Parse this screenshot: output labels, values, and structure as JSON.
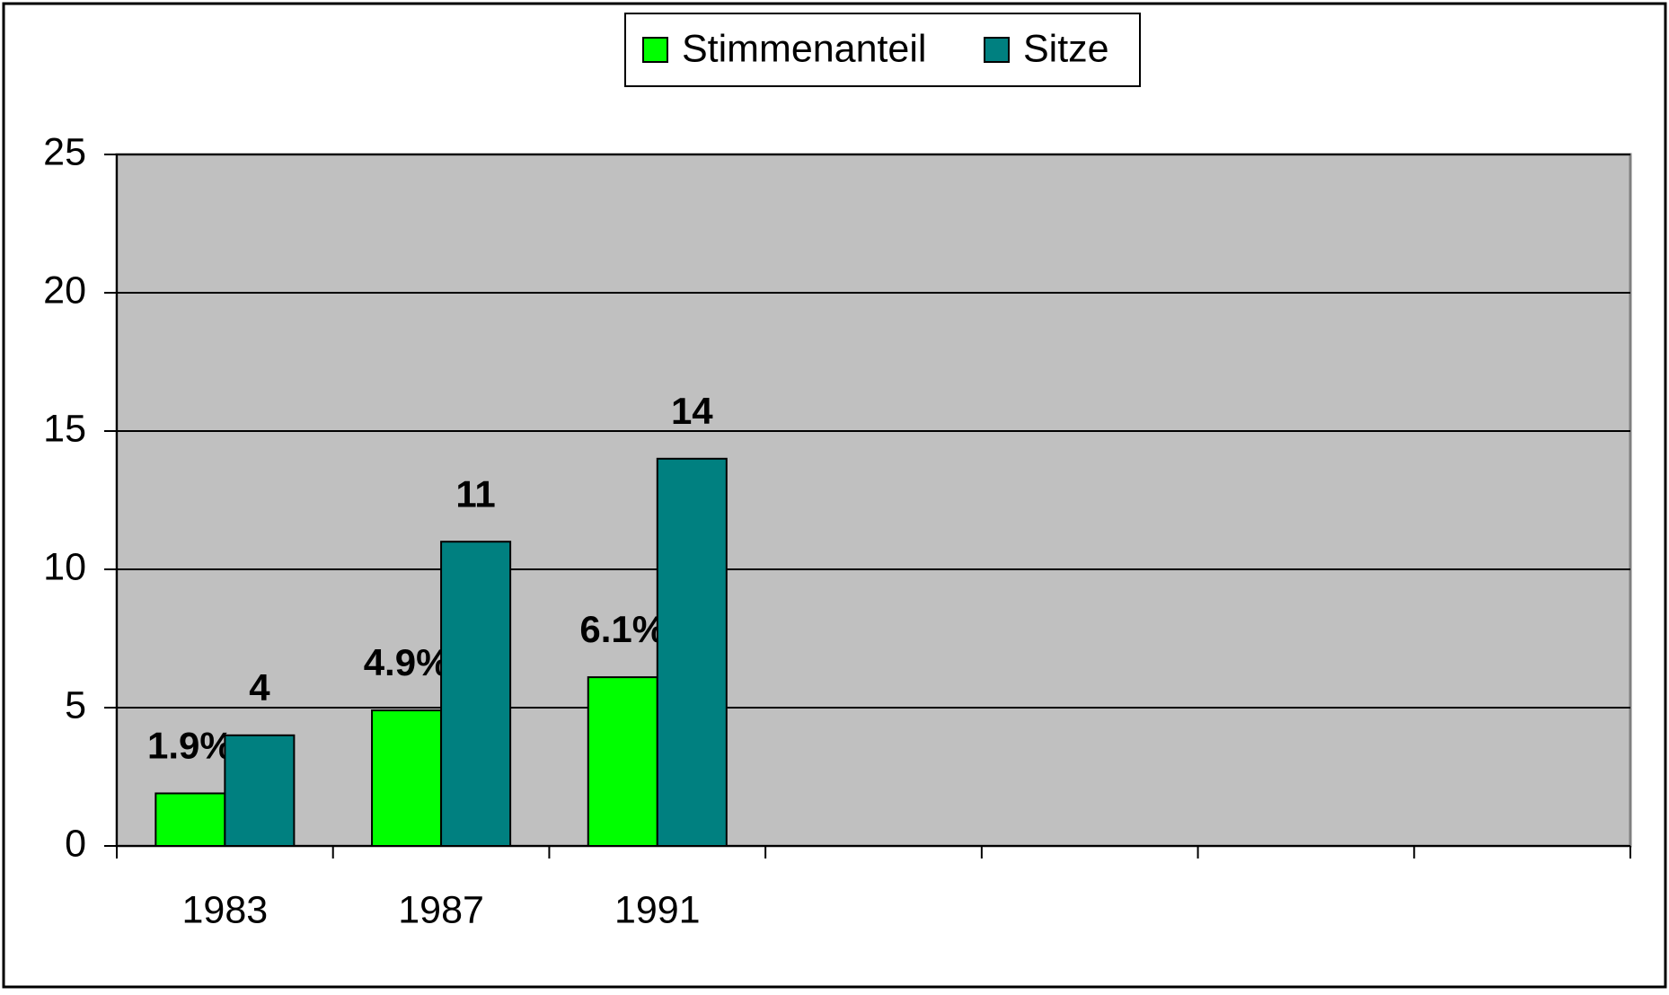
{
  "chart_data": {
    "type": "bar",
    "categories": [
      "1983",
      "1987",
      "1991",
      null,
      null,
      null,
      null
    ],
    "series": [
      {
        "name": "Stimmenanteil",
        "color": "#00ff00",
        "values": [
          1.9,
          4.9,
          6.1,
          null,
          null,
          null,
          null
        ],
        "value_labels": [
          "1.9%",
          "4.9%",
          "6.1%",
          null,
          null,
          null,
          null
        ]
      },
      {
        "name": "Sitze",
        "color": "#008080",
        "values": [
          4,
          11,
          14,
          null,
          null,
          null,
          null
        ]
      }
    ],
    "ylim": [
      0,
      25
    ],
    "yticks": [
      0,
      5,
      10,
      15,
      20,
      25
    ],
    "grid": true,
    "legend": "top",
    "plot_background": "#c0c0c0"
  }
}
